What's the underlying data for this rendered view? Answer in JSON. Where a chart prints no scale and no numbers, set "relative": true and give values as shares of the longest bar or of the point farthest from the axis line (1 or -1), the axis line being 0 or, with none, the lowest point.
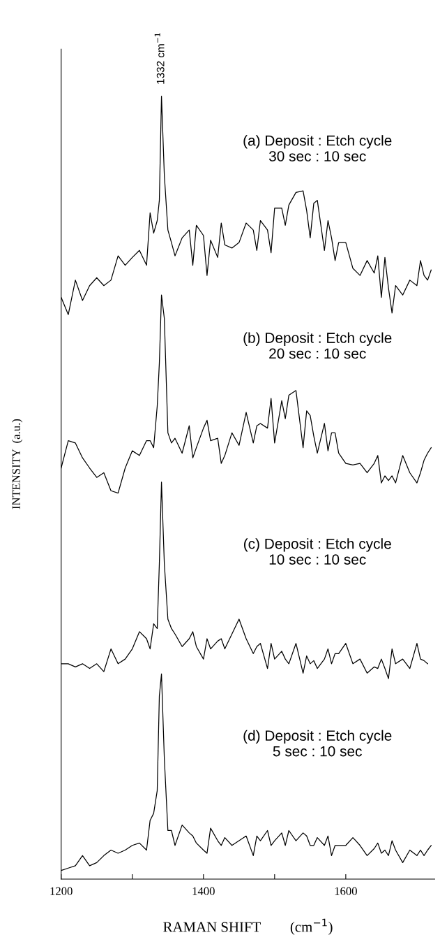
{
  "chart_data": {
    "type": "line",
    "relative": true,
    "xlabel": "RAMAN SHIFT        (cm$^{−1}$)",
    "ylabel": "INTENSITY  (a.u.)",
    "xlim": [
      1200,
      1725
    ],
    "xticks": [
      1200,
      {
        "value": 1300,
        "label": null
      },
      1400,
      {
        "value": 1500,
        "label": null
      },
      1600
    ],
    "x": [
      1200,
      1210,
      1220,
      1230,
      1240,
      1250,
      1260,
      1270,
      1280,
      1290,
      1300,
      1310,
      1320,
      1325,
      1330,
      1335,
      1338,
      1341,
      1345,
      1350,
      1355,
      1360,
      1370,
      1380,
      1385,
      1390,
      1400,
      1405,
      1410,
      1420,
      1425,
      1430,
      1440,
      1450,
      1460,
      1470,
      1475,
      1480,
      1490,
      1495,
      1500,
      1510,
      1515,
      1520,
      1530,
      1540,
      1545,
      1550,
      1555,
      1560,
      1570,
      1575,
      1580,
      1585,
      1590,
      1600,
      1610,
      1620,
      1630,
      1640,
      1645,
      1650,
      1655,
      1660,
      1665,
      1670,
      1680,
      1690,
      1700,
      1705,
      1710,
      1715,
      1720
    ],
    "series": [
      {
        "color": "#000000",
        "values": [
          0.743,
          0.721,
          0.765,
          0.739,
          0.758,
          0.768,
          0.758,
          0.765,
          0.796,
          0.784,
          0.794,
          0.803,
          0.784,
          0.851,
          0.825,
          0.841,
          0.867,
          1.0,
          0.899,
          0.829,
          0.813,
          0.796,
          0.819,
          0.829,
          0.784,
          0.835,
          0.822,
          0.771,
          0.816,
          0.794,
          0.838,
          0.81,
          0.806,
          0.813,
          0.838,
          0.829,
          0.803,
          0.841,
          0.829,
          0.8,
          0.857,
          0.857,
          0.835,
          0.861,
          0.877,
          0.879,
          0.854,
          0.819,
          0.863,
          0.867,
          0.803,
          0.841,
          0.819,
          0.79,
          0.813,
          0.813,
          0.78,
          0.771,
          0.79,
          0.774,
          0.796,
          0.743,
          0.794,
          0.755,
          0.723,
          0.758,
          0.746,
          0.765,
          0.758,
          0.79,
          0.771,
          0.765,
          0.778
        ]
      },
      {
        "color": "#000000",
        "values": [
          0.525,
          0.56,
          0.557,
          0.538,
          0.525,
          0.513,
          0.519,
          0.496,
          0.493,
          0.525,
          0.547,
          0.541,
          0.56,
          0.56,
          0.551,
          0.604,
          0.659,
          0.746,
          0.716,
          0.57,
          0.557,
          0.563,
          0.544,
          0.579,
          0.538,
          0.551,
          0.576,
          0.586,
          0.56,
          0.563,
          0.531,
          0.541,
          0.57,
          0.554,
          0.596,
          0.557,
          0.579,
          0.582,
          0.576,
          0.614,
          0.557,
          0.611,
          0.588,
          0.618,
          0.624,
          0.551,
          0.598,
          0.592,
          0.566,
          0.544,
          0.582,
          0.547,
          0.57,
          0.57,
          0.544,
          0.531,
          0.529,
          0.531,
          0.519,
          0.531,
          0.541,
          0.506,
          0.515,
          0.509,
          0.515,
          0.506,
          0.541,
          0.519,
          0.506,
          0.519,
          0.535,
          0.544,
          0.551
        ]
      },
      {
        "color": "#000000",
        "values": [
          0.275,
          0.275,
          0.271,
          0.275,
          0.269,
          0.275,
          0.265,
          0.294,
          0.275,
          0.281,
          0.294,
          0.316,
          0.307,
          0.294,
          0.326,
          0.32,
          0.403,
          0.507,
          0.403,
          0.332,
          0.32,
          0.313,
          0.297,
          0.307,
          0.316,
          0.297,
          0.281,
          0.307,
          0.294,
          0.304,
          0.307,
          0.294,
          0.313,
          0.332,
          0.307,
          0.288,
          0.297,
          0.301,
          0.269,
          0.301,
          0.281,
          0.291,
          0.281,
          0.275,
          0.301,
          0.263,
          0.285,
          0.275,
          0.279,
          0.269,
          0.281,
          0.294,
          0.275,
          0.288,
          0.288,
          0.301,
          0.275,
          0.281,
          0.263,
          0.271,
          0.269,
          0.281,
          0.269,
          0.256,
          0.294,
          0.275,
          0.281,
          0.269,
          0.301,
          0.281,
          0.279,
          0.275,
          null
        ]
      },
      {
        "color": "#000000",
        "values": [
          0.011,
          0.014,
          0.017,
          0.03,
          0.017,
          0.021,
          0.03,
          0.037,
          0.033,
          0.037,
          0.043,
          0.046,
          0.037,
          0.075,
          0.084,
          0.113,
          0.234,
          0.262,
          0.154,
          0.062,
          0.062,
          0.043,
          0.069,
          0.059,
          0.055,
          0.046,
          0.037,
          0.033,
          0.065,
          0.049,
          0.043,
          0.053,
          0.043,
          0.049,
          0.055,
          0.03,
          0.055,
          0.049,
          0.062,
          0.043,
          0.049,
          0.059,
          0.043,
          0.062,
          0.049,
          0.059,
          0.055,
          0.043,
          0.043,
          0.053,
          0.043,
          0.055,
          0.03,
          0.043,
          0.043,
          0.043,
          0.053,
          0.043,
          0.03,
          0.039,
          0.046,
          0.033,
          0.037,
          0.03,
          0.049,
          0.037,
          0.021,
          0.037,
          0.03,
          0.037,
          0.03,
          0.037,
          0.043
        ]
      }
    ],
    "annotations": [
      {
        "text": "1332 cm$^{−1}$",
        "x": 1341,
        "y": 1.0
      },
      "(a) Deposit : Etch cycle\n30 sec : 10 sec",
      "(b) Deposit : Etch cycle\n20 sec : 10 sec",
      "(c) Deposit : Etch cycle\n10 sec : 10 sec",
      "(d) Deposit : Etch cycle\n5 sec : 10 sec"
    ],
    "grid": false,
    "legend": false
  }
}
